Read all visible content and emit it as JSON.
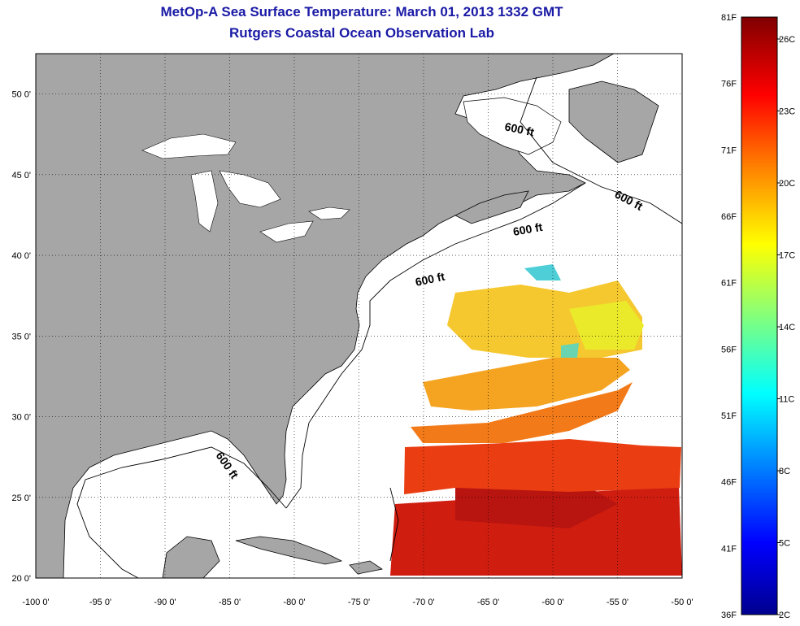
{
  "title": {
    "line1": "MetOp-A Sea Surface Temperature:  March 01, 2013 1332 GMT",
    "line2": "Rutgers Coastal Ocean Observation Lab"
  },
  "map": {
    "lon_range": [
      -100,
      -50
    ],
    "lat_range": [
      20,
      52.5
    ],
    "lon_ticks": [
      -100,
      -95,
      -90,
      -85,
      -80,
      -75,
      -70,
      -65,
      -60,
      -55,
      -50
    ],
    "lon_tick_labels": [
      "-100 0'",
      "-95 0'",
      "-90 0'",
      "-85 0'",
      "-80 0'",
      "-75 0'",
      "-70 0'",
      "-65 0'",
      "-60 0'",
      "-55 0'",
      "-50 0'"
    ],
    "lat_ticks": [
      20,
      25,
      30,
      35,
      40,
      45,
      50
    ],
    "lat_tick_labels": [
      "20 0'",
      "25 0'",
      "30 0'",
      "35 0'",
      "40 0'",
      "45 0'",
      "50 0'"
    ],
    "grid": true,
    "land_color": "#a6a6a6",
    "ocean_color": "#ffffff",
    "contour_labels": [
      "600 ft",
      "600 ft",
      "600 ft",
      "600 ft",
      "600 ft"
    ]
  },
  "colorbar": {
    "fahrenheit_labels": [
      "81F",
      "76F",
      "71F",
      "66F",
      "61F",
      "56F",
      "51F",
      "46F",
      "41F",
      "36F"
    ],
    "celsius_labels": [
      "26C",
      "23C",
      "20C",
      "17C",
      "14C",
      "11C",
      "8C",
      "5C",
      "2C"
    ],
    "colors": [
      "#00008f",
      "#0000ff",
      "#00ffff",
      "#ffff00",
      "#ff8000",
      "#ff0000",
      "#800000"
    ]
  }
}
